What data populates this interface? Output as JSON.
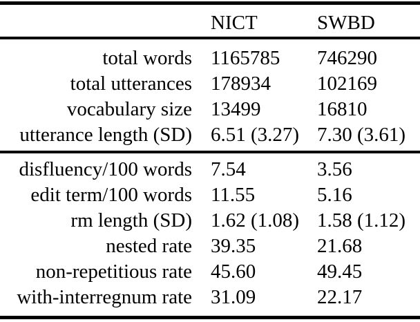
{
  "table": {
    "columns": [
      {
        "label": "NICT"
      },
      {
        "label": "SWBD"
      }
    ],
    "sections": [
      {
        "rows": [
          {
            "label": "total words",
            "nict": "1165785",
            "swbd": "746290"
          },
          {
            "label": "total utterances",
            "nict": "178934",
            "swbd": "102169"
          },
          {
            "label": "vocabulary size",
            "nict": "13499",
            "swbd": "16810"
          },
          {
            "label": "utterance length (SD)",
            "nict": "6.51 (3.27)",
            "swbd": "7.30 (3.61)"
          }
        ]
      },
      {
        "rows": [
          {
            "label": "disfluency/100 words",
            "nict": "7.54",
            "swbd": "3.56"
          },
          {
            "label": "edit term/100 words",
            "nict": "11.55",
            "swbd": "5.16"
          },
          {
            "label": "rm length (SD)",
            "nict": "1.62 (1.08)",
            "swbd": "1.58 (1.12)"
          },
          {
            "label": "nested rate",
            "nict": "39.35",
            "swbd": "21.68"
          },
          {
            "label": "non-repetitious rate",
            "nict": "45.60",
            "swbd": "49.45"
          },
          {
            "label": "with-interregnum rate",
            "nict": "31.09",
            "swbd": "22.17"
          }
        ]
      }
    ],
    "colors": {
      "rule": "#000000",
      "text": "#000000",
      "background": "#ffffff"
    }
  }
}
